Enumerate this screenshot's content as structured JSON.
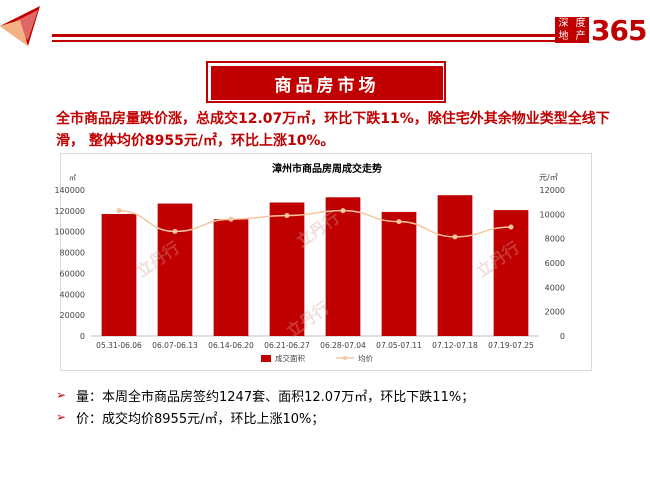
{
  "header": {
    "brand_small": [
      "深",
      "度",
      "地",
      "产"
    ],
    "brand_number": "365"
  },
  "section_title": "商品房市场",
  "headline": "全市商品房量跌价涨，总成交12.07万㎡，环比下跌11%，除住宅外其余物业类型全线下滑，  整体均价8955元/㎡，环比上涨10%。",
  "bullets": [
    {
      "text": "量：本周全市商品房签约1247套、面积12.07万㎡，环比下跌11%；"
    },
    {
      "text": "价：成交均价8955元/㎡，环比上涨10%；"
    }
  ],
  "watermark_text": "立丹行",
  "colors": {
    "accent": "#c00000",
    "bar": "#c00000",
    "line": "#f4c7a1"
  },
  "chart_data": {
    "type": "bar",
    "title": "漳州市商品房周成交走势",
    "categories": [
      "05.31-06.06",
      "06.07-06.13",
      "06.14-06.20",
      "06.21-06.27",
      "06.28-07.04",
      "07.05-07.11",
      "07.12-07.18",
      "07.19-07.25"
    ],
    "series": [
      {
        "name": "成交面积",
        "type": "bar",
        "axis": "left",
        "values": [
          117000,
          127000,
          112000,
          128000,
          133000,
          119000,
          135000,
          120700
        ]
      },
      {
        "name": "均价",
        "type": "line",
        "axis": "right",
        "values": [
          10300,
          8600,
          9600,
          9900,
          10300,
          9400,
          8150,
          8955
        ]
      }
    ],
    "y_left": {
      "unit": "㎡",
      "min": 0,
      "max": 140000,
      "ticks": [
        0,
        20000,
        40000,
        60000,
        80000,
        100000,
        120000,
        140000
      ]
    },
    "y_right": {
      "unit": "元/㎡",
      "min": 0,
      "max": 12000,
      "ticks": [
        0,
        2000,
        4000,
        6000,
        8000,
        10000,
        12000
      ]
    },
    "legend": {
      "position": "bottom",
      "items": [
        "成交面积",
        "均价"
      ]
    }
  }
}
